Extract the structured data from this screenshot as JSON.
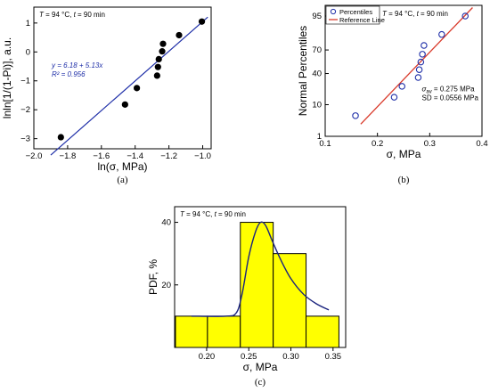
{
  "chart_data": [
    {
      "id": "a",
      "type": "scatter",
      "panel_label": "(a)",
      "annotation": "T = 94 °C, t = 90 min",
      "annotation_parts": [
        "T",
        " = 94 °C, ",
        "t",
        " = 90 min"
      ],
      "xlabel": "ln(σ, MPa)",
      "ylabel": "lnln[1/(1-Pi)], a.u.",
      "xlim": [
        -2.0,
        -0.95
      ],
      "ylim": [
        -3.35,
        1.55
      ],
      "xticks": [
        -2.0,
        -1.8,
        -1.6,
        -1.4,
        -1.2,
        -1.0
      ],
      "xtick_labels": [
        "−2.0",
        "−1.8",
        "−1.6",
        "−1.4",
        "−1.2",
        "−1.0"
      ],
      "yticks": [
        -3,
        -2,
        -1,
        0,
        1
      ],
      "ytick_labels": [
        "−3",
        "−2",
        "−1",
        "0",
        "1"
      ],
      "points": [
        {
          "x": -1.84,
          "y": -2.95
        },
        {
          "x": -1.46,
          "y": -1.82
        },
        {
          "x": -1.39,
          "y": -1.25
        },
        {
          "x": -1.27,
          "y": -0.82
        },
        {
          "x": -1.265,
          "y": -0.52
        },
        {
          "x": -1.26,
          "y": -0.25
        },
        {
          "x": -1.24,
          "y": 0.02
        },
        {
          "x": -1.235,
          "y": 0.28
        },
        {
          "x": -1.14,
          "y": 0.58
        },
        {
          "x": -1.005,
          "y": 1.05
        }
      ],
      "fit": {
        "intercept": 6.18,
        "slope": 5.13,
        "equation": "y = 6.18 + 5.13x",
        "r2": "R² = 0.956",
        "color": "#1f2fa8"
      },
      "point_color": "#000000"
    },
    {
      "id": "b",
      "type": "scatter",
      "panel_label": "(b)",
      "annotation": "T = 94 °C, t = 90 min",
      "annotation_parts": [
        "T",
        " = 94 °C, ",
        "t",
        " = 90 min"
      ],
      "xlabel": "σ, MPa",
      "ylabel": "Normal Percentiles",
      "xlim": [
        0.1,
        0.4
      ],
      "xticks": [
        0.1,
        0.2,
        0.3,
        0.4
      ],
      "xtick_labels": [
        "0.1",
        "0.2",
        "0.3",
        "0.4"
      ],
      "yscale": "normal-probability",
      "yticks": [
        1,
        10,
        40,
        70,
        95
      ],
      "ytick_labels": [
        "1",
        "10",
        "40",
        "70",
        "95"
      ],
      "legend": [
        {
          "label": "Percentiles",
          "color": "#1f2fa8",
          "marker": "open-circle"
        },
        {
          "label": "Reference Line",
          "color": "#d93a2b",
          "marker": "line"
        }
      ],
      "legend_position": "top-left",
      "points": [
        {
          "x": 0.158,
          "y": 5
        },
        {
          "x": 0.232,
          "y": 15
        },
        {
          "x": 0.247,
          "y": 25
        },
        {
          "x": 0.278,
          "y": 35
        },
        {
          "x": 0.28,
          "y": 45
        },
        {
          "x": 0.283,
          "y": 55
        },
        {
          "x": 0.286,
          "y": 65
        },
        {
          "x": 0.289,
          "y": 75
        },
        {
          "x": 0.323,
          "y": 85
        },
        {
          "x": 0.368,
          "y": 95
        }
      ],
      "reference_line": {
        "mean": 0.275,
        "sd": 0.0556,
        "x_range": [
          0.168,
          0.382
        ]
      },
      "stats_text": [
        "σav = 0.275 MPa",
        "SD = 0.0556 MPa"
      ]
    },
    {
      "id": "c",
      "type": "bar",
      "panel_label": "(c)",
      "annotation": "T = 94 °C, t = 90 min",
      "annotation_parts": [
        "T",
        " = 94 °C, ",
        "t",
        " = 90 min"
      ],
      "xlabel": "σ, MPa",
      "ylabel": "PDF, %",
      "xlim": [
        0.162,
        0.365
      ],
      "ylim": [
        0,
        45
      ],
      "xticks": [
        0.2,
        0.25,
        0.3,
        0.35
      ],
      "xtick_labels": [
        "0.20",
        "0.25",
        "0.30",
        "0.35"
      ],
      "yticks": [
        0,
        20,
        40
      ],
      "ytick_labels": [
        "0",
        "20",
        "40"
      ],
      "bins": [
        {
          "x0": 0.163,
          "x1": 0.201,
          "value": 10
        },
        {
          "x0": 0.201,
          "x1": 0.24,
          "value": 10
        },
        {
          "x0": 0.24,
          "x1": 0.279,
          "value": 40
        },
        {
          "x0": 0.279,
          "x1": 0.318,
          "value": 30
        },
        {
          "x0": 0.318,
          "x1": 0.357,
          "value": 10
        }
      ],
      "bar_color": "#ffff00",
      "curve_color": "#1a237e",
      "curve": {
        "x": [
          0.182,
          0.222,
          0.235,
          0.242,
          0.25,
          0.258,
          0.264,
          0.27,
          0.278,
          0.288,
          0.3,
          0.315,
          0.33,
          0.345
        ],
        "y": [
          10,
          10,
          11,
          17,
          29,
          37,
          40,
          39,
          34,
          28,
          22,
          17,
          14,
          12
        ]
      }
    }
  ]
}
